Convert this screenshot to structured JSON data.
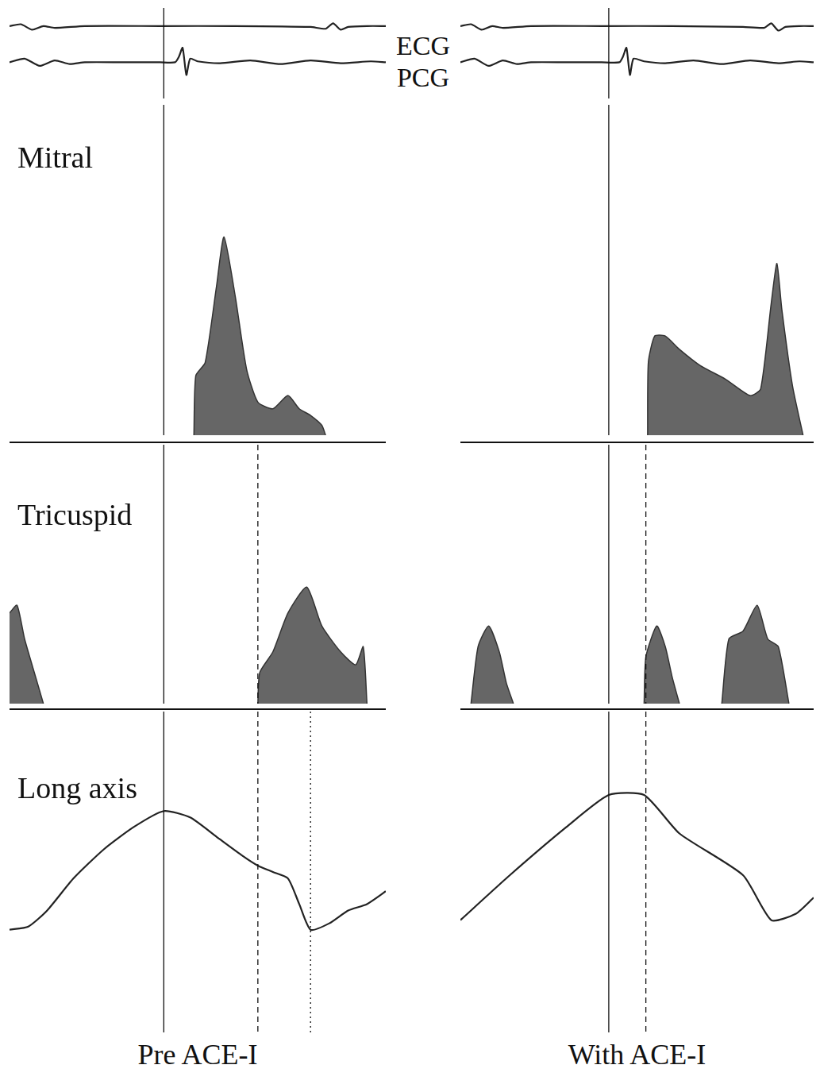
{
  "captions": [
    "Pre ACE-I",
    "With ACE-I"
  ],
  "strip_labels": [
    "ECG",
    "PCG"
  ],
  "chart_data": [
    {
      "type": "line",
      "xlim": [
        0,
        100
      ],
      "ylim": [
        0,
        100
      ],
      "tick_labels": false,
      "grid": false,
      "reference_lines": [
        {
          "x": 41,
          "line_style": "solid"
        }
      ],
      "series": [
        {
          "x": [
            0,
            3,
            6,
            9,
            12,
            20,
            40,
            60,
            80,
            84,
            86,
            88,
            90,
            95,
            100
          ],
          "values": [
            80,
            82,
            76,
            80,
            78,
            80,
            80,
            80,
            79,
            77,
            83,
            76,
            79,
            80,
            80
          ],
          "color": "#222222",
          "line_style": "solid"
        },
        {
          "x": [
            0,
            4,
            8,
            12,
            16,
            20,
            30,
            40,
            44,
            45,
            46,
            47,
            48,
            50,
            56,
            64,
            72,
            80,
            88,
            96,
            100
          ],
          "values": [
            40,
            44,
            36,
            42,
            38,
            40,
            40,
            40,
            40,
            46,
            56,
            26,
            44,
            41,
            39,
            42,
            38,
            42,
            39,
            41,
            40
          ],
          "color": "#222222",
          "line_style": "solid"
        }
      ]
    },
    {
      "type": "area",
      "title": "Mitral",
      "xlim": [
        0,
        100
      ],
      "ylim": [
        0,
        100
      ],
      "tick_labels": false,
      "grid": false,
      "reference_lines": [
        {
          "x": 41,
          "line_style": "solid"
        }
      ],
      "series": [
        {
          "x": [
            49,
            49.5,
            52,
            55,
            57,
            60,
            63,
            66,
            70,
            74,
            77,
            80,
            83,
            84
          ],
          "values": [
            0,
            18,
            22,
            45,
            60,
            42,
            20,
            10,
            8,
            12,
            8,
            6,
            3,
            0
          ],
          "color": "#333333"
        }
      ]
    },
    {
      "type": "area",
      "title": "Tricuspid",
      "xlim": [
        0,
        100
      ],
      "ylim": [
        0,
        100
      ],
      "tick_labels": false,
      "grid": false,
      "reference_lines": [
        {
          "x": 41,
          "line_style": "solid"
        },
        {
          "x": 66,
          "line_style": "dashed"
        }
      ],
      "series": [
        {
          "x": [
            0,
            2,
            4,
            7,
            9
          ],
          "values": [
            35,
            38,
            25,
            10,
            0
          ],
          "color": "#333333"
        },
        {
          "x": [
            66,
            66.5,
            70,
            74,
            79,
            83,
            88,
            92,
            94,
            95
          ],
          "values": [
            0,
            12,
            20,
            35,
            45,
            30,
            20,
            15,
            22,
            0
          ],
          "color": "#333333"
        }
      ]
    },
    {
      "type": "line",
      "title": "Long axis",
      "xlim": [
        0,
        100
      ],
      "ylim": [
        0,
        100
      ],
      "tick_labels": false,
      "grid": false,
      "reference_lines": [
        {
          "x": 41,
          "line_style": "solid"
        },
        {
          "x": 66,
          "line_style": "dashed"
        },
        {
          "x": 80,
          "line_style": "dotted"
        }
      ],
      "series": [
        {
          "x": [
            0,
            5,
            10,
            17,
            25,
            33,
            41,
            48,
            55,
            62,
            66,
            70,
            74,
            77,
            80,
            85,
            90,
            95,
            100
          ],
          "values": [
            32,
            33,
            38,
            48,
            57,
            64,
            69,
            67,
            61,
            55,
            52,
            50,
            48,
            40,
            32,
            34,
            38,
            40,
            44
          ],
          "color": "#222222",
          "line_style": "solid"
        }
      ]
    },
    {
      "type": "line",
      "xlim": [
        0,
        100
      ],
      "ylim": [
        0,
        100
      ],
      "tick_labels": false,
      "grid": false,
      "reference_lines": [
        {
          "x": 42,
          "line_style": "solid"
        }
      ],
      "series": [
        {
          "x": [
            0,
            3,
            6,
            9,
            12,
            20,
            40,
            60,
            80,
            86,
            88,
            90,
            92,
            96,
            100
          ],
          "values": [
            80,
            82,
            76,
            80,
            78,
            80,
            80,
            80,
            79,
            78,
            83,
            75,
            79,
            80,
            80
          ],
          "color": "#222222",
          "line_style": "solid"
        },
        {
          "x": [
            0,
            4,
            8,
            12,
            16,
            20,
            30,
            40,
            45,
            46,
            47,
            48,
            49,
            52,
            58,
            66,
            74,
            82,
            90,
            96,
            100
          ],
          "values": [
            40,
            44,
            36,
            42,
            38,
            40,
            40,
            40,
            40,
            46,
            56,
            26,
            44,
            41,
            39,
            42,
            38,
            42,
            39,
            41,
            40
          ],
          "color": "#222222",
          "line_style": "solid"
        }
      ]
    },
    {
      "type": "area",
      "xlim": [
        0,
        100
      ],
      "ylim": [
        0,
        100
      ],
      "tick_labels": false,
      "grid": false,
      "reference_lines": [
        {
          "x": 42,
          "line_style": "solid"
        }
      ],
      "series": [
        {
          "x": [
            53,
            53.2,
            55,
            58,
            62,
            68,
            75,
            82,
            85,
            88,
            89.6,
            91,
            94,
            97
          ],
          "values": [
            0,
            22,
            30,
            30,
            26,
            21,
            17,
            12,
            14,
            40,
            52,
            38,
            15,
            0
          ],
          "color": "#333333"
        }
      ]
    },
    {
      "type": "area",
      "xlim": [
        0,
        100
      ],
      "ylim": [
        0,
        100
      ],
      "tick_labels": false,
      "grid": false,
      "reference_lines": [
        {
          "x": 42,
          "line_style": "solid"
        },
        {
          "x": 52.5,
          "line_style": "dashed"
        }
      ],
      "series": [
        {
          "x": [
            3,
            5,
            8,
            11,
            13,
            15
          ],
          "values": [
            0,
            22,
            30,
            20,
            8,
            0
          ],
          "color": "#333333"
        },
        {
          "x": [
            52,
            52.5,
            55.6,
            58,
            60,
            62
          ],
          "values": [
            0,
            18,
            30,
            22,
            10,
            0
          ],
          "color": "#333333"
        },
        {
          "x": [
            74,
            76,
            80,
            84,
            87,
            90,
            93
          ],
          "values": [
            0,
            25,
            28,
            38,
            25,
            22,
            0
          ],
          "color": "#333333"
        }
      ]
    },
    {
      "type": "line",
      "xlim": [
        0,
        100
      ],
      "ylim": [
        0,
        100
      ],
      "tick_labels": false,
      "grid": false,
      "reference_lines": [
        {
          "x": 42,
          "line_style": "solid"
        },
        {
          "x": 52.5,
          "line_style": "dashed"
        }
      ],
      "series": [
        {
          "x": [
            0,
            14,
            30,
            42,
            52,
            62,
            80,
            88,
            95,
            100
          ],
          "values": [
            35,
            49,
            64,
            74,
            74,
            62,
            49,
            35,
            37,
            42
          ],
          "color": "#222222",
          "line_style": "solid"
        }
      ]
    }
  ]
}
